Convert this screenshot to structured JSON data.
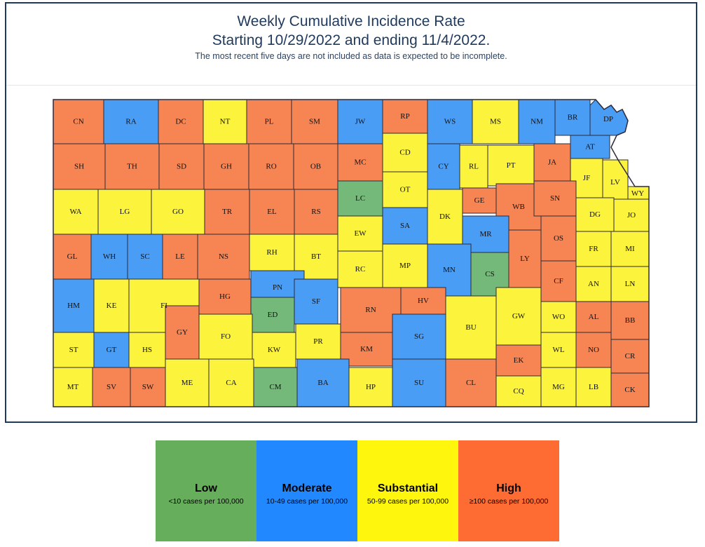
{
  "header": {
    "title_line1": "Weekly Cumulative Incidence Rate",
    "title_line2": "Starting 10/29/2022 and ending 11/4/2022.",
    "note": "The most recent five days are not included as data is expected to be incomplete."
  },
  "colors": {
    "low": "#74b97a",
    "moderate": "#4a9df5",
    "substantial": "#fbf33c",
    "high": "#f78553",
    "border": "#2b2b3b"
  },
  "legend": [
    {
      "key": "low",
      "label": "Low",
      "desc": "<10 cases per 100,000",
      "color": "#66ad5c"
    },
    {
      "key": "moderate",
      "label": "Moderate",
      "desc": "10-49 cases per 100,000",
      "color": "#2288ff"
    },
    {
      "key": "substantial",
      "label": "Substantial",
      "desc": "50-99 cases per 100,000",
      "color": "#fff60e"
    },
    {
      "key": "high",
      "label": "High",
      "desc": "≥100 cases per 100,000",
      "color": "#ff6c33"
    }
  ],
  "counties": [
    {
      "code": "CN",
      "level": "high"
    },
    {
      "code": "RA",
      "level": "moderate"
    },
    {
      "code": "DC",
      "level": "high"
    },
    {
      "code": "NT",
      "level": "substantial"
    },
    {
      "code": "PL",
      "level": "high"
    },
    {
      "code": "SM",
      "level": "high"
    },
    {
      "code": "JW",
      "level": "moderate"
    },
    {
      "code": "RP",
      "level": "high"
    },
    {
      "code": "WS",
      "level": "moderate"
    },
    {
      "code": "MS",
      "level": "substantial"
    },
    {
      "code": "NM",
      "level": "moderate"
    },
    {
      "code": "BR",
      "level": "moderate"
    },
    {
      "code": "DP",
      "level": "moderate"
    },
    {
      "code": "SH",
      "level": "high"
    },
    {
      "code": "TH",
      "level": "high"
    },
    {
      "code": "SD",
      "level": "high"
    },
    {
      "code": "GH",
      "level": "high"
    },
    {
      "code": "RO",
      "level": "high"
    },
    {
      "code": "OB",
      "level": "high"
    },
    {
      "code": "MC",
      "level": "high"
    },
    {
      "code": "CD",
      "level": "substantial"
    },
    {
      "code": "CY",
      "level": "moderate"
    },
    {
      "code": "RL",
      "level": "substantial"
    },
    {
      "code": "PT",
      "level": "substantial"
    },
    {
      "code": "JA",
      "level": "high"
    },
    {
      "code": "AT",
      "level": "moderate"
    },
    {
      "code": "JF",
      "level": "substantial"
    },
    {
      "code": "LV",
      "level": "substantial"
    },
    {
      "code": "WY",
      "level": "substantial"
    },
    {
      "code": "WA",
      "level": "substantial"
    },
    {
      "code": "LG",
      "level": "substantial"
    },
    {
      "code": "GO",
      "level": "substantial"
    },
    {
      "code": "TR",
      "level": "high"
    },
    {
      "code": "EL",
      "level": "high"
    },
    {
      "code": "RS",
      "level": "high"
    },
    {
      "code": "LC",
      "level": "low"
    },
    {
      "code": "OT",
      "level": "substantial"
    },
    {
      "code": "GE",
      "level": "high"
    },
    {
      "code": "WB",
      "level": "high"
    },
    {
      "code": "SN",
      "level": "high"
    },
    {
      "code": "DG",
      "level": "substantial"
    },
    {
      "code": "JO",
      "level": "substantial"
    },
    {
      "code": "EW",
      "level": "substantial"
    },
    {
      "code": "SA",
      "level": "moderate"
    },
    {
      "code": "DK",
      "level": "substantial"
    },
    {
      "code": "MR",
      "level": "moderate"
    },
    {
      "code": "OS",
      "level": "high"
    },
    {
      "code": "GL",
      "level": "high"
    },
    {
      "code": "WH",
      "level": "moderate"
    },
    {
      "code": "SC",
      "level": "moderate"
    },
    {
      "code": "LE",
      "level": "high"
    },
    {
      "code": "NS",
      "level": "high"
    },
    {
      "code": "RH",
      "level": "substantial"
    },
    {
      "code": "BT",
      "level": "substantial"
    },
    {
      "code": "RC",
      "level": "substantial"
    },
    {
      "code": "MP",
      "level": "substantial"
    },
    {
      "code": "MN",
      "level": "moderate"
    },
    {
      "code": "CS",
      "level": "low"
    },
    {
      "code": "LY",
      "level": "high"
    },
    {
      "code": "FR",
      "level": "substantial"
    },
    {
      "code": "MI",
      "level": "substantial"
    },
    {
      "code": "AN",
      "level": "substantial"
    },
    {
      "code": "LN",
      "level": "substantial"
    },
    {
      "code": "CF",
      "level": "high"
    },
    {
      "code": "HM",
      "level": "moderate"
    },
    {
      "code": "KE",
      "level": "substantial"
    },
    {
      "code": "FI",
      "level": "substantial"
    },
    {
      "code": "HG",
      "level": "high"
    },
    {
      "code": "PN",
      "level": "moderate"
    },
    {
      "code": "SF",
      "level": "moderate"
    },
    {
      "code": "ED",
      "level": "low"
    },
    {
      "code": "RN",
      "level": "high"
    },
    {
      "code": "HV",
      "level": "high"
    },
    {
      "code": "BU",
      "level": "substantial"
    },
    {
      "code": "GW",
      "level": "substantial"
    },
    {
      "code": "WO",
      "level": "substantial"
    },
    {
      "code": "AL",
      "level": "high"
    },
    {
      "code": "BB",
      "level": "high"
    },
    {
      "code": "GY",
      "level": "high"
    },
    {
      "code": "FO",
      "level": "substantial"
    },
    {
      "code": "KW",
      "level": "substantial"
    },
    {
      "code": "PR",
      "level": "substantial"
    },
    {
      "code": "KM",
      "level": "high"
    },
    {
      "code": "SG",
      "level": "moderate"
    },
    {
      "code": "WL",
      "level": "substantial"
    },
    {
      "code": "NO",
      "level": "high"
    },
    {
      "code": "CR",
      "level": "high"
    },
    {
      "code": "ST",
      "level": "substantial"
    },
    {
      "code": "GT",
      "level": "moderate"
    },
    {
      "code": "HS",
      "level": "substantial"
    },
    {
      "code": "EK",
      "level": "high"
    },
    {
      "code": "MT",
      "level": "substantial"
    },
    {
      "code": "SV",
      "level": "high"
    },
    {
      "code": "SW",
      "level": "high"
    },
    {
      "code": "ME",
      "level": "substantial"
    },
    {
      "code": "CA",
      "level": "substantial"
    },
    {
      "code": "CM",
      "level": "low"
    },
    {
      "code": "BA",
      "level": "moderate"
    },
    {
      "code": "HP",
      "level": "substantial"
    },
    {
      "code": "SU",
      "level": "moderate"
    },
    {
      "code": "CL",
      "level": "high"
    },
    {
      "code": "CQ",
      "level": "substantial"
    },
    {
      "code": "MG",
      "level": "substantial"
    },
    {
      "code": "LB",
      "level": "substantial"
    },
    {
      "code": "CK",
      "level": "high"
    }
  ]
}
